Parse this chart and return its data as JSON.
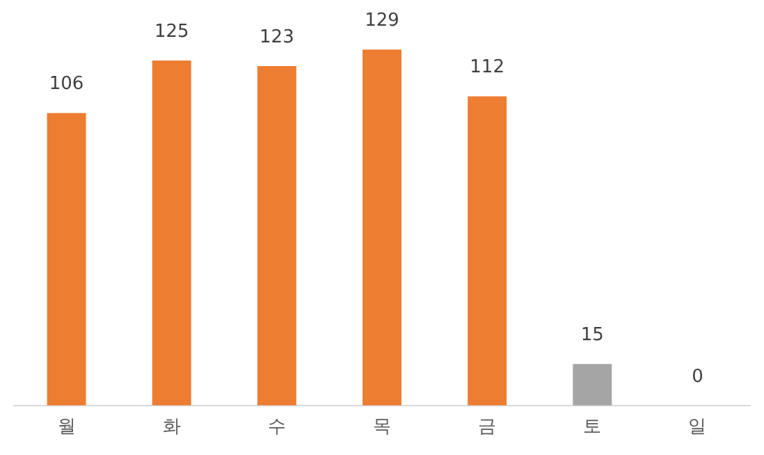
{
  "chart_data": {
    "type": "bar",
    "categories": [
      "월",
      "화",
      "수",
      "목",
      "금",
      "토",
      "일"
    ],
    "values": [
      106,
      125,
      123,
      129,
      112,
      15,
      0
    ],
    "colors": [
      "#ed7d31",
      "#ed7d31",
      "#ed7d31",
      "#ed7d31",
      "#ed7d31",
      "#a5a5a5",
      "#a5a5a5"
    ],
    "data_labels": true,
    "grid": false,
    "legend": false
  }
}
